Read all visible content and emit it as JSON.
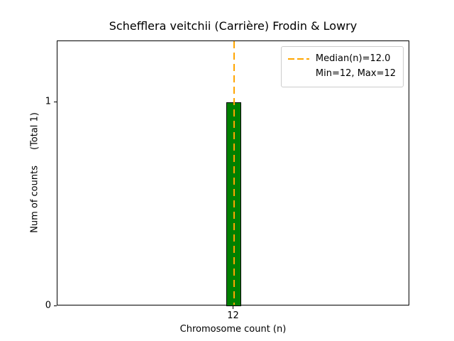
{
  "chart_data": {
    "type": "bar",
    "title": "Schefflera veitchii (Carrière) Frodin & Lowry",
    "xlabel": "Chromosome count (n)",
    "ylabel": "Num of counts",
    "ylabel_total": "(Total 1)",
    "categories": [
      "12"
    ],
    "values": [
      1
    ],
    "x_tick_labels": [
      "12"
    ],
    "y_ticks": [
      0,
      1
    ],
    "y_tick_labels": [
      "0",
      "1"
    ],
    "ylim": [
      0,
      1.3
    ],
    "grid": false,
    "bar_color": "#008000",
    "bar_edge_color": "#000000",
    "median_line": {
      "value": 12.0,
      "color": "#FFA500",
      "style": "dashed"
    },
    "legend": {
      "position": "upper right",
      "entries": [
        "Median(n)=12.0",
        "Min=12, Max=12"
      ]
    },
    "stats": {
      "median": 12.0,
      "min": 12,
      "max": 12,
      "total_counts": 1
    }
  }
}
